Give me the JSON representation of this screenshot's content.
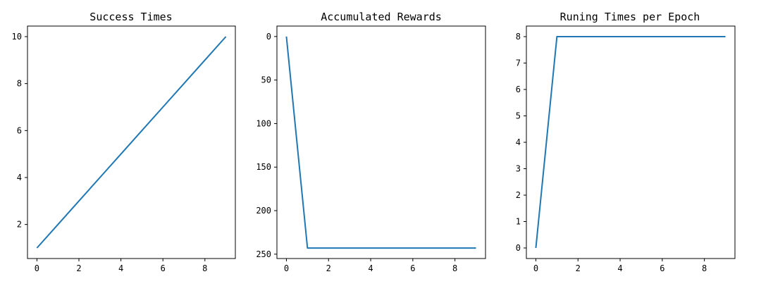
{
  "colors": {
    "series": "#1f77b4",
    "axes": "#000000",
    "background": "#ffffff"
  },
  "chart_data": [
    {
      "type": "line",
      "title": "Success Times",
      "xlabel": "",
      "ylabel": "",
      "xlim": [
        -0.45,
        9.45
      ],
      "ylim": [
        0.55,
        10.45
      ],
      "inverted_y": false,
      "grid": false,
      "xticks": [
        0,
        2,
        4,
        6,
        8
      ],
      "yticks": [
        2,
        4,
        6,
        8,
        10
      ],
      "series": [
        {
          "x": [
            0,
            1,
            2,
            3,
            4,
            5,
            6,
            7,
            8,
            9
          ],
          "y": [
            1,
            2,
            3,
            4,
            5,
            6,
            7,
            8,
            9,
            10
          ]
        }
      ]
    },
    {
      "type": "line",
      "title": "Accumulated Rewards",
      "xlabel": "",
      "ylabel": "",
      "xlim": [
        -0.45,
        9.45
      ],
      "ylim": [
        -12,
        255
      ],
      "inverted_y": true,
      "grid": false,
      "xticks": [
        0,
        2,
        4,
        6,
        8
      ],
      "yticks": [
        0,
        50,
        100,
        150,
        200,
        250
      ],
      "series": [
        {
          "x": [
            0,
            1,
            2,
            3,
            4,
            5,
            6,
            7,
            8,
            9
          ],
          "y": [
            0,
            243,
            243,
            243,
            243,
            243,
            243,
            243,
            243,
            243
          ]
        }
      ]
    },
    {
      "type": "line",
      "title": "Runing Times per Epoch",
      "xlabel": "",
      "ylabel": "",
      "xlim": [
        -0.45,
        9.45
      ],
      "ylim": [
        -0.4,
        8.4
      ],
      "inverted_y": false,
      "grid": false,
      "xticks": [
        0,
        2,
        4,
        6,
        8
      ],
      "yticks": [
        0,
        1,
        2,
        3,
        4,
        5,
        6,
        7,
        8
      ],
      "series": [
        {
          "x": [
            0,
            1,
            2,
            3,
            4,
            5,
            6,
            7,
            8,
            9
          ],
          "y": [
            0,
            8,
            8,
            8,
            8,
            8,
            8,
            8,
            8,
            8
          ]
        }
      ]
    }
  ]
}
